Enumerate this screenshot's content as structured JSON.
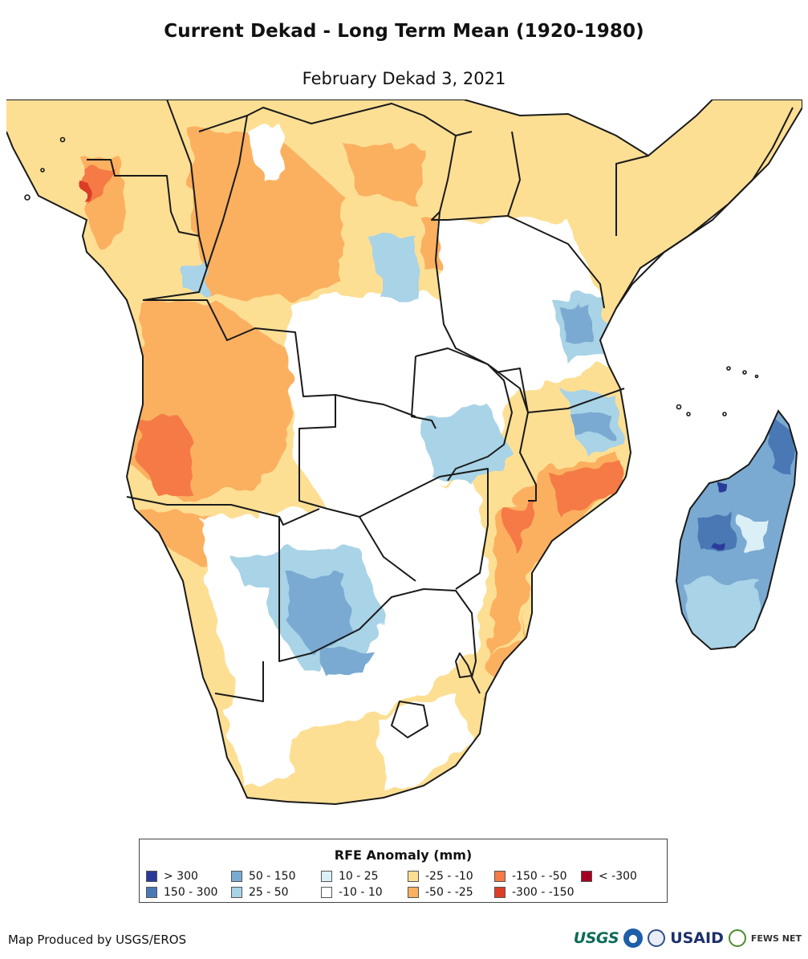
{
  "title": "Current Dekad - Long Term Mean (1920-1980)",
  "subtitle": "February Dekad 3, 2021",
  "legend": {
    "title": "RFE Anomaly (mm)",
    "items": [
      {
        "label": "> 300",
        "color": "#2b3a9a"
      },
      {
        "label": "150 - 300",
        "color": "#4a78b5"
      },
      {
        "label": "50 - 150",
        "color": "#7aaad2"
      },
      {
        "label": "25 - 50",
        "color": "#a9d3e6"
      },
      {
        "label": "10 - 25",
        "color": "#dbeff7"
      },
      {
        "label": "-10 - 10",
        "color": "#ffffff"
      },
      {
        "label": "-25 - -10",
        "color": "#fddf94"
      },
      {
        "label": "-50 - -25",
        "color": "#fbb060"
      },
      {
        "label": "-150 - -50",
        "color": "#f57a45"
      },
      {
        "label": "-300 - -150",
        "color": "#dc3e27"
      },
      {
        "label": "< -300",
        "color": "#a30021"
      }
    ]
  },
  "credit": "Map Produced by USGS/EROS",
  "logos": {
    "usgs": "USGS",
    "noaa": "noaa-seal-icon",
    "doc": "commerce-seal-icon",
    "usaid": "USAID",
    "fews": "FEWS NET"
  }
}
